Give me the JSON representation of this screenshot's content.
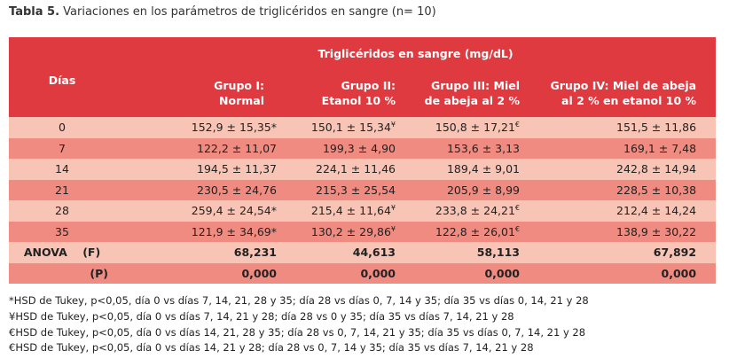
{
  "title": {
    "label": "Tabla 5.",
    "text": "Variaciones en los parámetros de triglicéridos en sangre (n= 10)"
  },
  "table": {
    "group_header": "Triglicéridos en sangre (mg/dL)",
    "columns": {
      "dias": "Días",
      "g1_line1": "Grupo I:",
      "g1_line2": "Normal",
      "g2_line1": "Grupo II:",
      "g2_line2": "Etanol 10 %",
      "g3_line1": "Grupo III: Miel",
      "g3_line2": "de abeja al 2 %",
      "g4_line1": "Grupo IV: Miel de abeja",
      "g4_line2": "al 2 % en etanol 10 %"
    },
    "rows": [
      {
        "dia": "0",
        "g1": "152,9 ± 15,35*",
        "g2": "150,1 ± 15,34",
        "g2_sup": "¥",
        "g3": "150,8 ± 17,21",
        "g3_sup": "€",
        "g4": "151,5 ± 11,86"
      },
      {
        "dia": "7",
        "g1": "122,2 ± 11,07",
        "g2": "199,3 ± 4,90",
        "g2_sup": "",
        "g3": "153,6 ± 3,13",
        "g3_sup": "",
        "g4": "169,1 ± 7,48"
      },
      {
        "dia": "14",
        "g1": "194,5 ± 11,37",
        "g2": "224,1 ± 11,46",
        "g2_sup": "",
        "g3": "189,4 ± 9,01",
        "g3_sup": "",
        "g4": "242,8 ± 14,94"
      },
      {
        "dia": "21",
        "g1": "230,5 ± 24,76",
        "g2": "215,3 ± 25,54",
        "g2_sup": "",
        "g3": "205,9 ± 8,99",
        "g3_sup": "",
        "g4": "228,5 ± 10,38"
      },
      {
        "dia": "28",
        "g1": "259,4 ± 24,54*",
        "g2": "215,4 ± 11,64",
        "g2_sup": "¥",
        "g3": "233,8 ± 24,21",
        "g3_sup": "€",
        "g4": "212,4 ± 14,24"
      },
      {
        "dia": "35",
        "g1": "121,9 ± 34,69*",
        "g2": "130,2 ± 29,86",
        "g2_sup": "¥",
        "g3": "122,8 ± 26,01",
        "g3_sup": "€",
        "g4": "138,9 ± 30,22"
      }
    ],
    "anova": {
      "label": "ANOVA",
      "f_label": "(F)",
      "f": [
        "68,231",
        "44,613",
        "58,113",
        "67,892"
      ],
      "p_label": "(P)",
      "p": [
        "0,000",
        "0,000",
        "0,000",
        "0,000"
      ]
    }
  },
  "notes": [
    "*HSD de Tukey, p<0,05, día 0 vs días 7, 14, 21, 28 y 35; día 28 vs días 0, 7, 14 y 35; día 35 vs días 0, 14, 21 y 28",
    "¥HSD de Tukey, p<0,05, día 0 vs días 7, 14, 21 y 28; día 28 vs 0 y 35; día 35 vs días 7, 14, 21 y 28",
    "€HSD de Tukey, p<0,05, día 0 vs días 14, 21, 28 y 35; día 28 vs 0, 7, 14, 21 y 35; día 35 vs días 0, 7, 14, 21 y 28",
    "€HSD de Tukey, p<0,05, día 0 vs días 14, 21 y 28; día 28 vs 0, 7, 14 y 35; día 35 vs días 7, 14, 21 y 28"
  ],
  "colors": {
    "header": "#e03a41",
    "row_light": "#f8c4b6",
    "row_dark": "#ef8b80"
  }
}
